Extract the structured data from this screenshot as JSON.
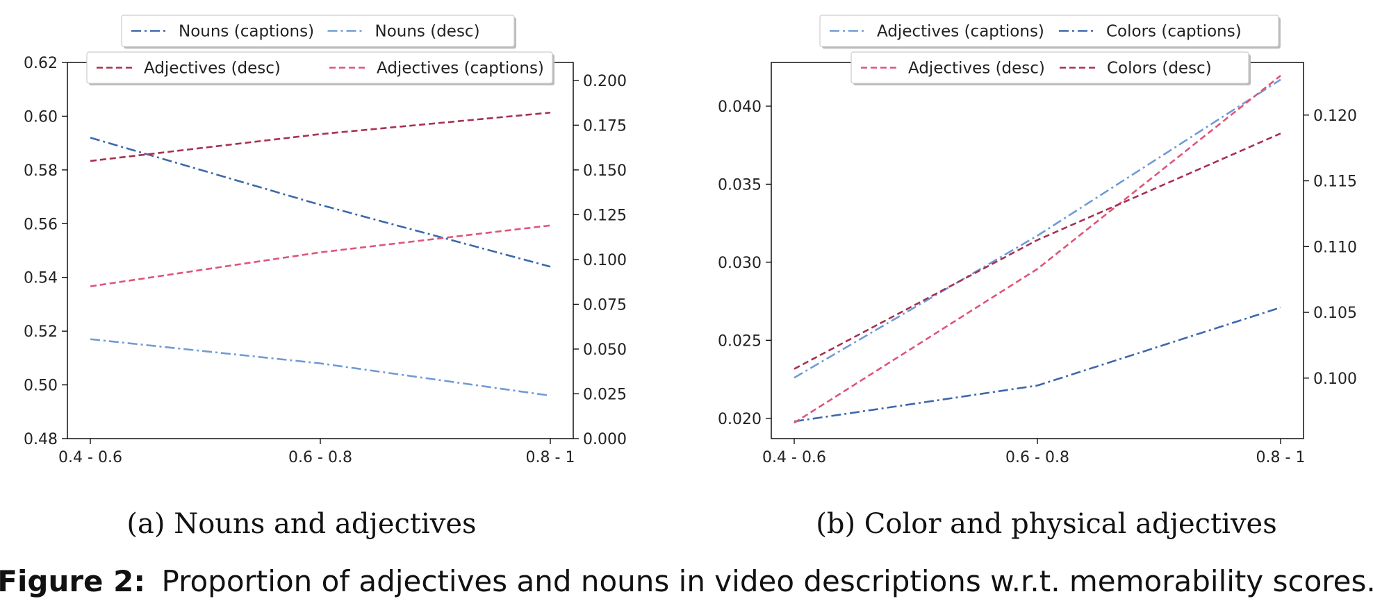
{
  "figure": {
    "label": "Figure 2:",
    "caption": "Proportion of adjectives and nouns in video descriptions w.r.t. memorability scores."
  },
  "colors": {
    "nouns_captions": "#3d68aa",
    "nouns_desc": "#6f9bd6",
    "adjectives_desc_a": "#a8304f",
    "adjectives_captions_a": "#df5478",
    "adjectives_captions_b": "#6f9bd6",
    "colors_captions": "#3d68aa",
    "adjectives_desc_b": "#df5478",
    "colors_desc": "#a8304f"
  },
  "chart_data": [
    {
      "type": "line",
      "subtitle": "(a) Nouns and adjectives",
      "categories": [
        "0.4 - 0.6",
        "0.6 - 0.8",
        "0.8 - 1"
      ],
      "left_axis": {
        "ylim": [
          0.48,
          0.62
        ],
        "ticks": [
          "0.48",
          "0.50",
          "0.52",
          "0.54",
          "0.56",
          "0.58",
          "0.60",
          "0.62"
        ],
        "series": [
          {
            "name": "Nouns (captions)",
            "values": [
              0.592,
              0.567,
              0.544
            ],
            "style": "dashdot",
            "color_key": "nouns_captions"
          },
          {
            "name": "Nouns (desc)",
            "values": [
              0.517,
              0.508,
              0.496
            ],
            "style": "dashdot",
            "color_key": "nouns_desc"
          }
        ],
        "legend_position": "top"
      },
      "right_axis": {
        "ylim": [
          0.0,
          0.21
        ],
        "ticks": [
          "0.000",
          "0.025",
          "0.050",
          "0.075",
          "0.100",
          "0.125",
          "0.150",
          "0.175",
          "0.200"
        ],
        "series": [
          {
            "name": "Adjectives (desc)",
            "values": [
              0.155,
              0.17,
              0.182
            ],
            "style": "dashed",
            "color_key": "adjectives_desc_a"
          },
          {
            "name": "Adjectives (captions)",
            "values": [
              0.085,
              0.104,
              0.119
            ],
            "style": "dashed",
            "color_key": "adjectives_captions_a"
          }
        ],
        "legend_position": "upper-center"
      }
    },
    {
      "type": "line",
      "subtitle": "(b) Color and physical adjectives",
      "categories": [
        "0.4 - 0.6",
        "0.6 - 0.8",
        "0.8 - 1"
      ],
      "left_axis": {
        "ylim": [
          0.0187,
          0.0428
        ],
        "ticks": [
          "0.020",
          "0.025",
          "0.030",
          "0.035",
          "0.040"
        ],
        "series": [
          {
            "name": "Adjectives (captions)",
            "values": [
              0.0226,
              0.0317,
              0.0417
            ],
            "style": "dashdot",
            "color_key": "adjectives_captions_b"
          },
          {
            "name": "Colors (captions)",
            "values": [
              0.0198,
              0.0221,
              0.0271
            ],
            "style": "dashdot",
            "color_key": "colors_captions"
          }
        ],
        "legend_position": "top"
      },
      "right_axis": {
        "ylim": [
          0.0954,
          0.124
        ],
        "ticks": [
          "0.100",
          "0.105",
          "0.110",
          "0.115",
          "0.120"
        ],
        "series": [
          {
            "name": "Adjectives (desc)",
            "values": [
              0.0966,
              0.1083,
              0.123
            ],
            "style": "dashed",
            "color_key": "adjectives_desc_b"
          },
          {
            "name": "Colors (desc)",
            "values": [
              0.1007,
              0.1105,
              0.1186
            ],
            "style": "dashed",
            "color_key": "colors_desc"
          }
        ],
        "legend_position": "upper-center"
      }
    }
  ]
}
